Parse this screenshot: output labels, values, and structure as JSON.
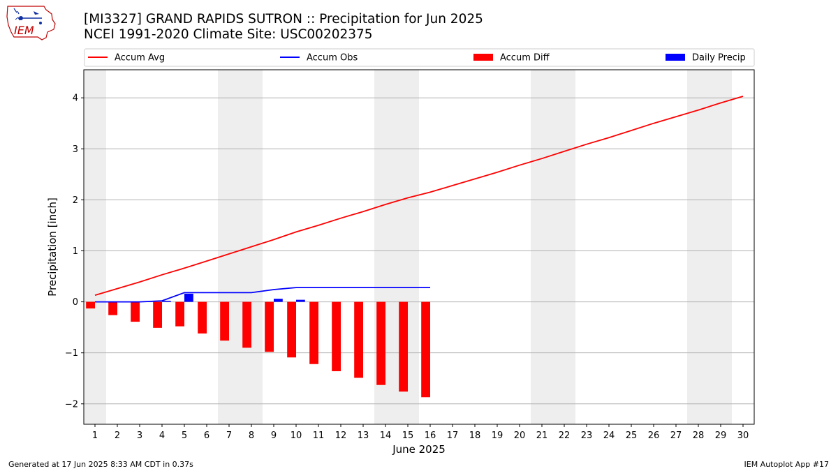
{
  "header": {
    "title_line1": "[MI3327] GRAND RAPIDS SUTRON :: Precipitation for Jun 2025",
    "title_line2": "NCEI 1991-2020 Climate Site: USC00202375",
    "logo_text": "IEM"
  },
  "footer": {
    "generated": "Generated at 17 Jun 2025 8:33 AM CDT in 0.37s",
    "app": "IEM Autoplot App #17"
  },
  "chart_data": {
    "type": "bar",
    "xlabel": "June 2025",
    "ylabel": "Precipitation [inch]",
    "xlim": [
      0.5,
      30.5
    ],
    "ylim": [
      -2.4,
      4.55
    ],
    "x_ticks": [
      1,
      2,
      3,
      4,
      5,
      6,
      7,
      8,
      9,
      10,
      11,
      12,
      13,
      14,
      15,
      16,
      17,
      18,
      19,
      20,
      21,
      22,
      23,
      24,
      25,
      26,
      27,
      28,
      29,
      30
    ],
    "y_ticks": [
      -2,
      -1,
      0,
      1,
      2,
      3,
      4
    ],
    "y_tick_labels": [
      "−2",
      "−1",
      "0",
      "1",
      "2",
      "3",
      "4"
    ],
    "grid": "horizontal",
    "legend_position": "top",
    "weekend_shading": [
      [
        0.5,
        1.5
      ],
      [
        6.5,
        8.5
      ],
      [
        13.5,
        15.5
      ],
      [
        20.5,
        22.5
      ],
      [
        27.5,
        29.5
      ]
    ],
    "colors": {
      "accum_avg": "#ff0000",
      "accum_obs": "#0000ff",
      "accum_diff": "#ff0000",
      "daily_precip": "#0000ff",
      "weekend": "#eeeeee",
      "grid": "#b0b0b0"
    },
    "series": [
      {
        "name": "Accum Avg",
        "kind": "line",
        "x": [
          1,
          2,
          3,
          4,
          5,
          6,
          7,
          8,
          9,
          10,
          11,
          12,
          13,
          14,
          15,
          16,
          17,
          18,
          19,
          20,
          21,
          22,
          23,
          24,
          25,
          26,
          27,
          28,
          29,
          30
        ],
        "values": [
          0.13,
          0.26,
          0.39,
          0.53,
          0.66,
          0.8,
          0.94,
          1.08,
          1.22,
          1.37,
          1.5,
          1.64,
          1.77,
          1.91,
          2.04,
          2.15,
          2.28,
          2.41,
          2.54,
          2.68,
          2.81,
          2.95,
          3.09,
          3.22,
          3.36,
          3.5,
          3.63,
          3.76,
          3.9,
          4.03
        ]
      },
      {
        "name": "Accum Obs",
        "kind": "line",
        "x": [
          1,
          2,
          3,
          4,
          5,
          6,
          7,
          8,
          9,
          10,
          11,
          12,
          13,
          14,
          15,
          16
        ],
        "values": [
          0.0,
          0.0,
          0.0,
          0.02,
          0.18,
          0.18,
          0.18,
          0.18,
          0.24,
          0.28,
          0.28,
          0.28,
          0.28,
          0.28,
          0.28,
          0.28
        ]
      },
      {
        "name": "Accum Diff",
        "kind": "bar",
        "x": [
          1,
          2,
          3,
          4,
          5,
          6,
          7,
          8,
          9,
          10,
          11,
          12,
          13,
          14,
          15,
          16
        ],
        "values": [
          -0.13,
          -0.26,
          -0.39,
          -0.51,
          -0.48,
          -0.62,
          -0.76,
          -0.9,
          -0.98,
          -1.09,
          -1.22,
          -1.36,
          -1.49,
          -1.63,
          -1.76,
          -1.87
        ]
      },
      {
        "name": "Daily Precip",
        "kind": "bar",
        "x": [
          1,
          2,
          3,
          4,
          5,
          6,
          7,
          8,
          9,
          10,
          11,
          12,
          13,
          14,
          15,
          16
        ],
        "values": [
          0,
          0,
          0,
          0.02,
          0.16,
          0,
          0,
          0,
          0.06,
          0.04,
          0,
          0,
          0,
          0,
          0,
          0
        ]
      }
    ]
  }
}
